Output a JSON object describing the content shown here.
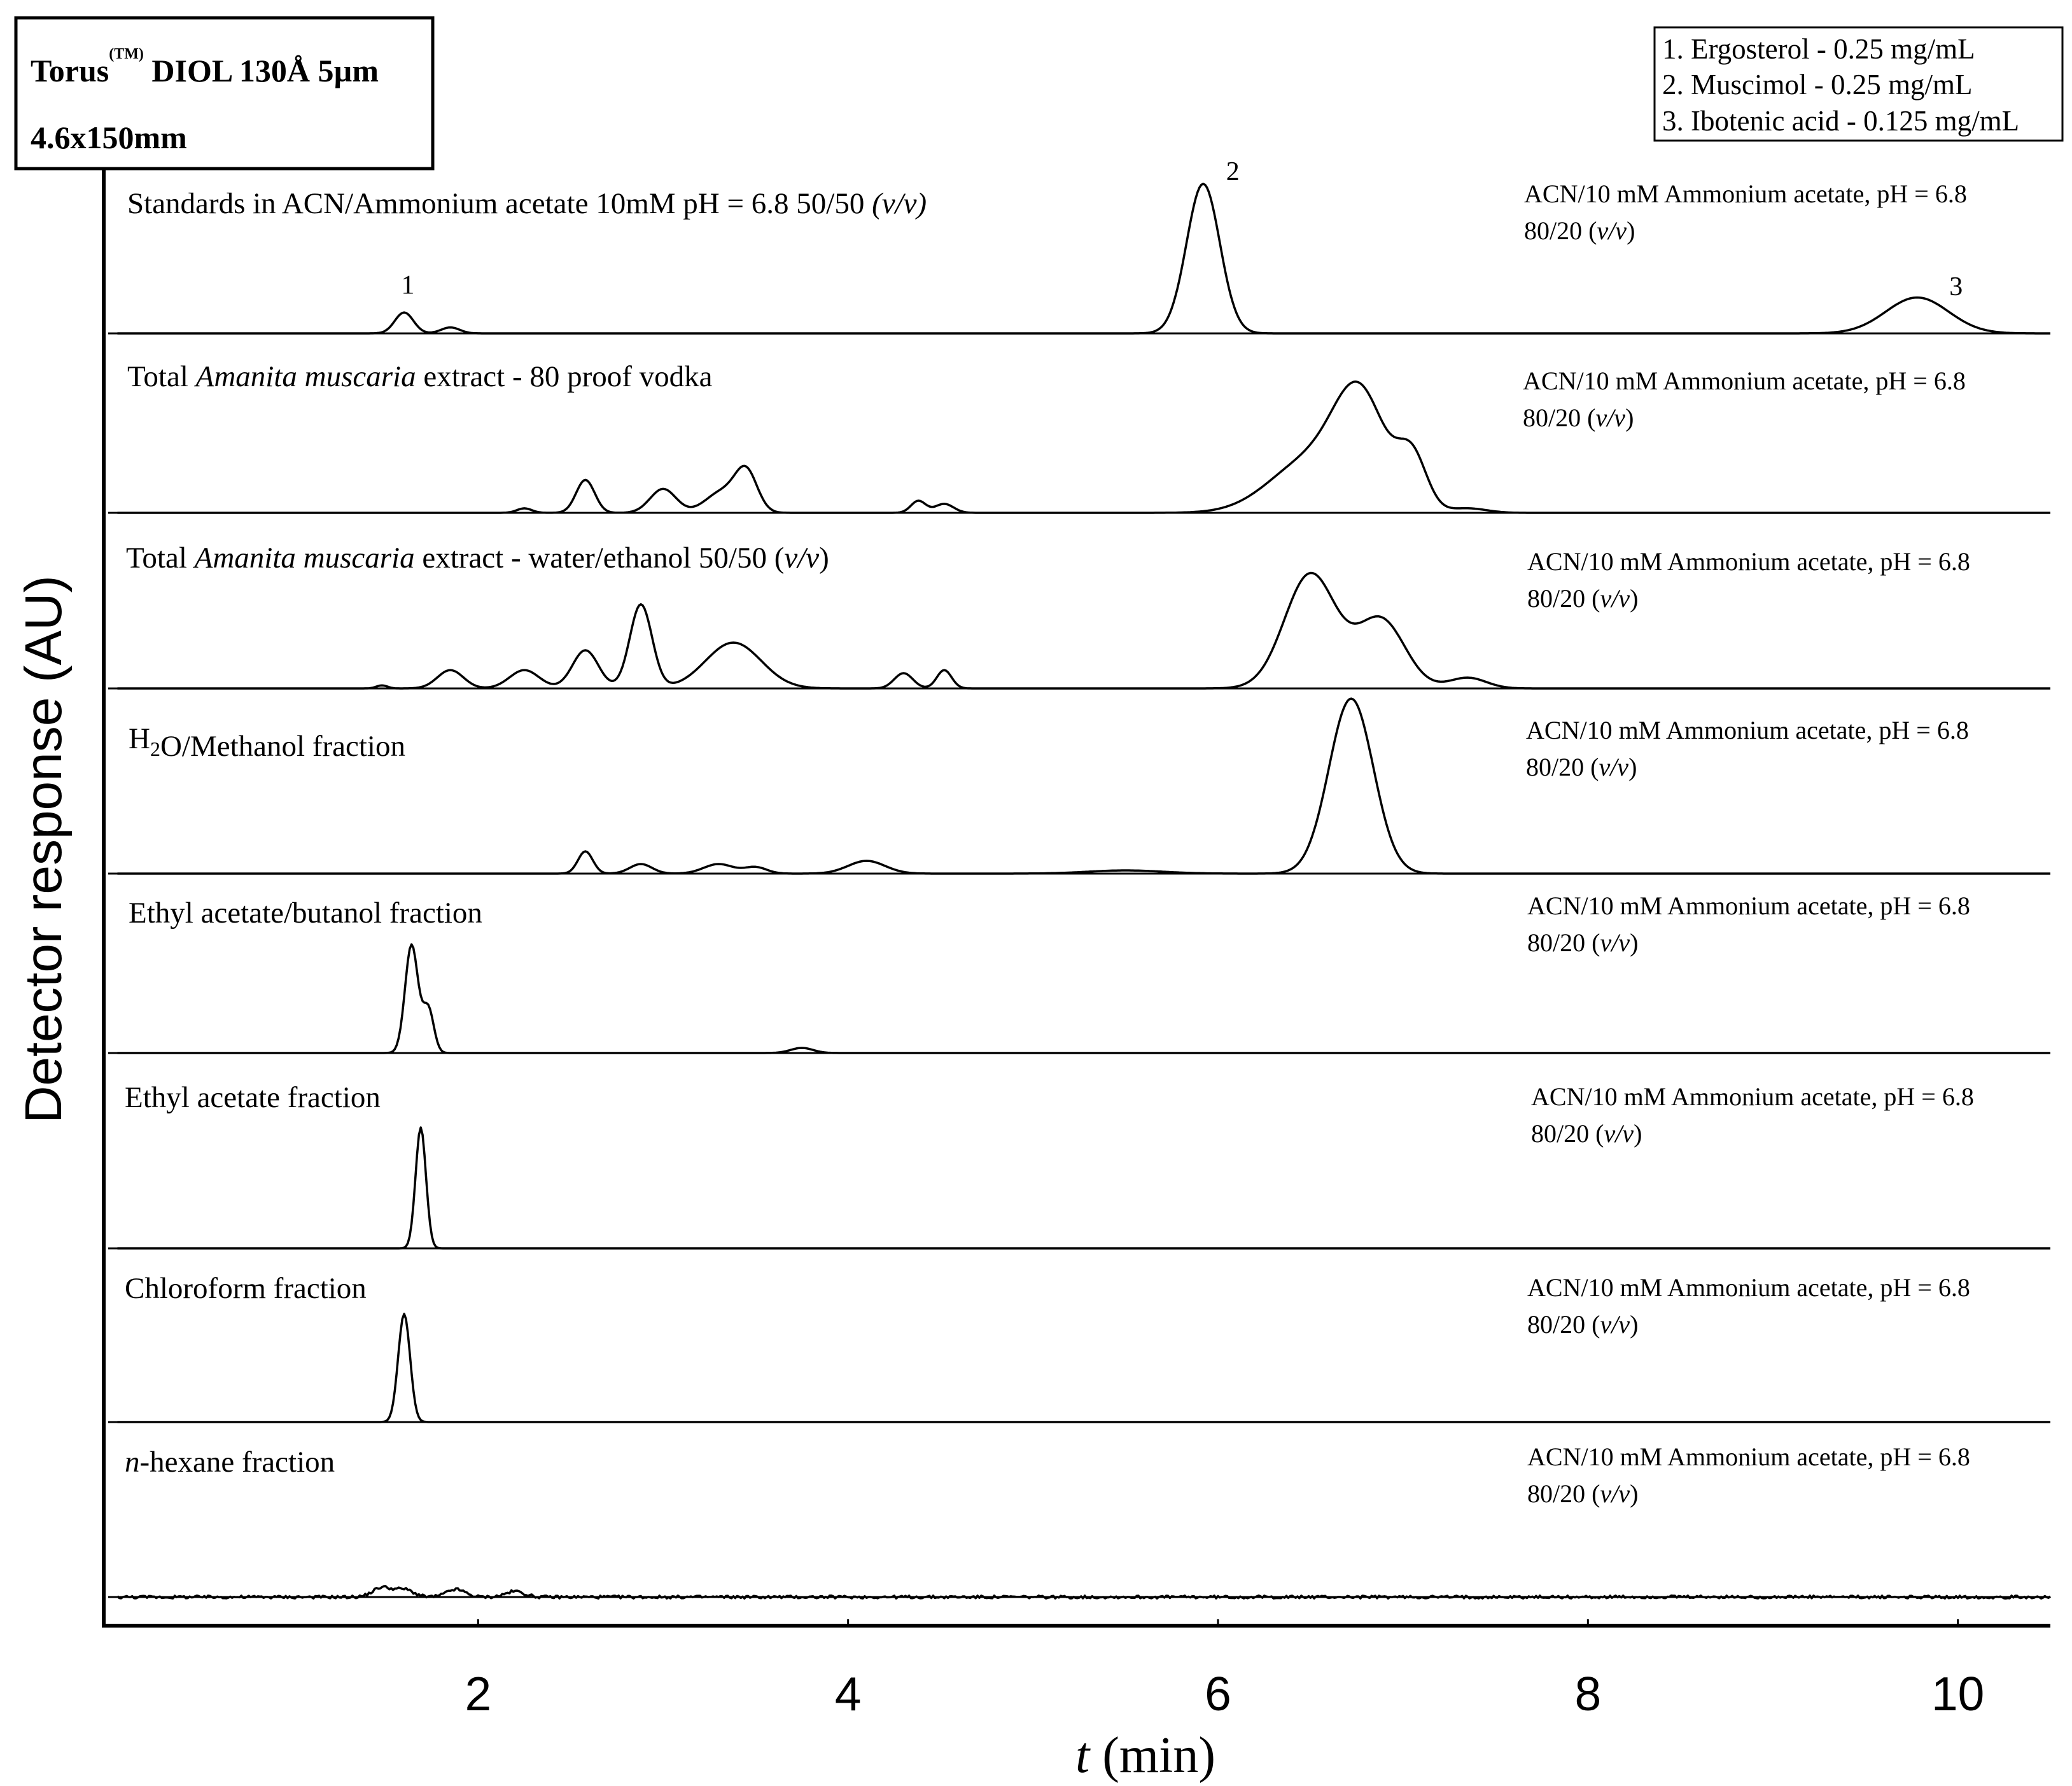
{
  "chart_data": {
    "type": "line",
    "column_box": {
      "line1": "Torus",
      "superscript": "(TM)",
      "line1_rest": " DIOL 130Å 5µm",
      "line2": "4.6x150mm"
    },
    "legend": [
      "1. Ergosterol - 0.25 mg/mL",
      "2. Muscimol - 0.25 mg/mL",
      "3. Ibotenic acid - 0.125 mg/mL"
    ],
    "ylabel": "Detector response (AU)",
    "xlabel": {
      "italic": "t",
      "rest": " (min)"
    },
    "xlim": [
      0,
      10.5
    ],
    "xticks": [
      2,
      4,
      6,
      8,
      10
    ],
    "mobile_phase": {
      "line1": "ACN/10 mM Ammonium acetate, pH = 6.8",
      "ratio": "80/20 (",
      "vv": "v/v",
      "close": ")"
    },
    "series": [
      {
        "name": "Standards",
        "title_parts": [
          {
            "t": "Standards in ACN/Ammonium acetate 10mM pH = 6.8 50/50 "
          },
          {
            "t": "(v/v)",
            "i": true
          }
        ],
        "peaks": [
          [
            1.6,
            0.14,
            0.05
          ],
          [
            1.85,
            0.04,
            0.05
          ],
          [
            5.92,
            1.0,
            0.09
          ],
          [
            9.78,
            0.24,
            0.17
          ]
        ],
        "noise": 0.0,
        "peak_labels": [
          {
            "label": "1",
            "x": 1.62,
            "y": 0.24
          },
          {
            "label": "2",
            "x": 6.08,
            "y": 1.0
          },
          {
            "label": "3",
            "x": 9.99,
            "y": 0.23
          }
        ]
      },
      {
        "name": "Vodka extract",
        "title_parts": [
          {
            "t": "Total "
          },
          {
            "t": "Amanita muscaria",
            "i": true
          },
          {
            "t": " extract - 80 proof vodka"
          }
        ],
        "peaks": [
          [
            2.25,
            0.03,
            0.04
          ],
          [
            2.58,
            0.22,
            0.05
          ],
          [
            3.0,
            0.16,
            0.07
          ],
          [
            3.32,
            0.14,
            0.09
          ],
          [
            3.45,
            0.26,
            0.06
          ],
          [
            4.38,
            0.08,
            0.04
          ],
          [
            4.52,
            0.06,
            0.05
          ],
          [
            6.5,
            0.35,
            0.22
          ],
          [
            6.77,
            0.7,
            0.14
          ],
          [
            7.05,
            0.35,
            0.08
          ],
          [
            7.35,
            0.03,
            0.1
          ]
        ],
        "noise": 0.0,
        "peak_labels": []
      },
      {
        "name": "Water/ethanol extract",
        "title_parts": [
          {
            "t": "Total "
          },
          {
            "t": "Amanita muscaria",
            "i": true
          },
          {
            "t": " extract - water/ethanol 50/50 ("
          },
          {
            "t": "v/v",
            "i": true
          },
          {
            "t": ")"
          }
        ],
        "peaks": [
          [
            1.48,
            0.02,
            0.03
          ],
          [
            1.85,
            0.12,
            0.07
          ],
          [
            2.25,
            0.12,
            0.08
          ],
          [
            2.58,
            0.25,
            0.07
          ],
          [
            2.88,
            0.55,
            0.06
          ],
          [
            3.38,
            0.3,
            0.15
          ],
          [
            4.3,
            0.1,
            0.05
          ],
          [
            4.52,
            0.12,
            0.04
          ],
          [
            6.5,
            0.75,
            0.14
          ],
          [
            6.88,
            0.45,
            0.13
          ],
          [
            7.35,
            0.07,
            0.1
          ]
        ],
        "noise": 0.0,
        "peak_labels": []
      },
      {
        "name": "H2O/Methanol fraction",
        "title_parts": [
          {
            "t": "H"
          },
          {
            "t": "2",
            "sub": true
          },
          {
            "t": "O/Methanol fraction"
          }
        ],
        "peaks": [
          [
            2.58,
            0.14,
            0.04
          ],
          [
            2.88,
            0.06,
            0.06
          ],
          [
            3.3,
            0.06,
            0.08
          ],
          [
            3.5,
            0.04,
            0.06
          ],
          [
            4.1,
            0.08,
            0.1
          ],
          [
            5.5,
            0.02,
            0.2
          ],
          [
            6.72,
            1.1,
            0.12
          ]
        ],
        "noise": 0.0,
        "peak_labels": []
      },
      {
        "name": "Ethyl acetate/butanol fraction",
        "title_parts": [
          {
            "t": "Ethyl acetate/butanol fraction"
          }
        ],
        "peaks": [
          [
            1.64,
            0.85,
            0.035
          ],
          [
            1.73,
            0.35,
            0.03
          ],
          [
            3.75,
            0.04,
            0.06
          ]
        ],
        "noise": 0.0,
        "peak_labels": []
      },
      {
        "name": "Ethyl acetate fraction",
        "title_parts": [
          {
            "t": "Ethyl acetate fraction"
          }
        ],
        "peaks": [
          [
            1.69,
            0.95,
            0.028
          ]
        ],
        "noise": 0.0,
        "peak_labels": []
      },
      {
        "name": "Chloroform fraction",
        "title_parts": [
          {
            "t": "Chloroform fraction"
          }
        ],
        "peaks": [
          [
            1.6,
            0.85,
            0.032
          ]
        ],
        "noise": 0.0,
        "peak_labels": []
      },
      {
        "name": "n-hexane fraction",
        "title_parts": [
          {
            "t": "n",
            "i": true
          },
          {
            "t": "-hexane fraction"
          }
        ],
        "peaks": [
          [
            1.48,
            0.1,
            0.05
          ],
          [
            1.6,
            0.08,
            0.05
          ],
          [
            1.88,
            0.08,
            0.05
          ],
          [
            2.2,
            0.06,
            0.05
          ]
        ],
        "noise": 0.03,
        "peak_labels": []
      }
    ]
  }
}
